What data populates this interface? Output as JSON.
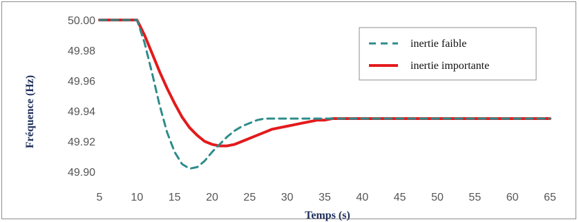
{
  "chart_data": {
    "type": "line",
    "title": "",
    "xlabel": "Temps (s)",
    "ylabel": "Fréquence (Hz)",
    "xlim": [
      5,
      65
    ],
    "ylim": [
      49.9,
      50.0
    ],
    "x_ticks": [
      "5",
      "10",
      "15",
      "20",
      "25",
      "30",
      "35",
      "40",
      "45",
      "50",
      "55",
      "60",
      "65"
    ],
    "y_ticks": [
      "50.00",
      "49.98",
      "49.96",
      "49.94",
      "49.92",
      "49.90"
    ],
    "grid": false,
    "legend_position": "top-right",
    "series": [
      {
        "name": "inertie faible",
        "color": "#2e8b8b",
        "style": "dashed",
        "x": [
          5,
          10,
          11,
          12,
          13,
          14,
          15,
          16,
          17,
          18,
          19,
          20,
          21,
          22,
          23,
          24,
          25,
          26,
          27,
          28,
          29,
          30,
          31,
          32,
          33,
          34,
          35,
          36,
          37,
          38,
          40,
          45,
          50,
          55,
          60,
          65
        ],
        "y": [
          50.0,
          50.0,
          49.985,
          49.965,
          49.944,
          49.926,
          49.913,
          49.905,
          49.902,
          49.903,
          49.907,
          49.913,
          49.918,
          49.923,
          49.927,
          49.93,
          49.932,
          49.934,
          49.935,
          49.935,
          49.935,
          49.935,
          49.935,
          49.935,
          49.935,
          49.935,
          49.935,
          49.935,
          49.935,
          49.935,
          49.935,
          49.935,
          49.935,
          49.935,
          49.935,
          49.935
        ]
      },
      {
        "name": "inertie importante",
        "color": "#e31a1c",
        "style": "solid",
        "x": [
          5,
          10,
          11,
          12,
          13,
          14,
          15,
          16,
          17,
          18,
          19,
          20,
          21,
          22,
          23,
          24,
          25,
          26,
          27,
          28,
          29,
          30,
          31,
          32,
          33,
          34,
          35,
          36,
          37,
          38,
          40,
          45,
          50,
          55,
          60,
          65
        ],
        "y": [
          50.0,
          50.0,
          49.99,
          49.978,
          49.966,
          49.955,
          49.945,
          49.936,
          49.929,
          49.924,
          49.92,
          49.918,
          49.917,
          49.917,
          49.918,
          49.92,
          49.922,
          49.924,
          49.926,
          49.928,
          49.929,
          49.93,
          49.931,
          49.932,
          49.933,
          49.934,
          49.934,
          49.935,
          49.935,
          49.935,
          49.935,
          49.935,
          49.935,
          49.935,
          49.935,
          49.935
        ]
      }
    ]
  }
}
